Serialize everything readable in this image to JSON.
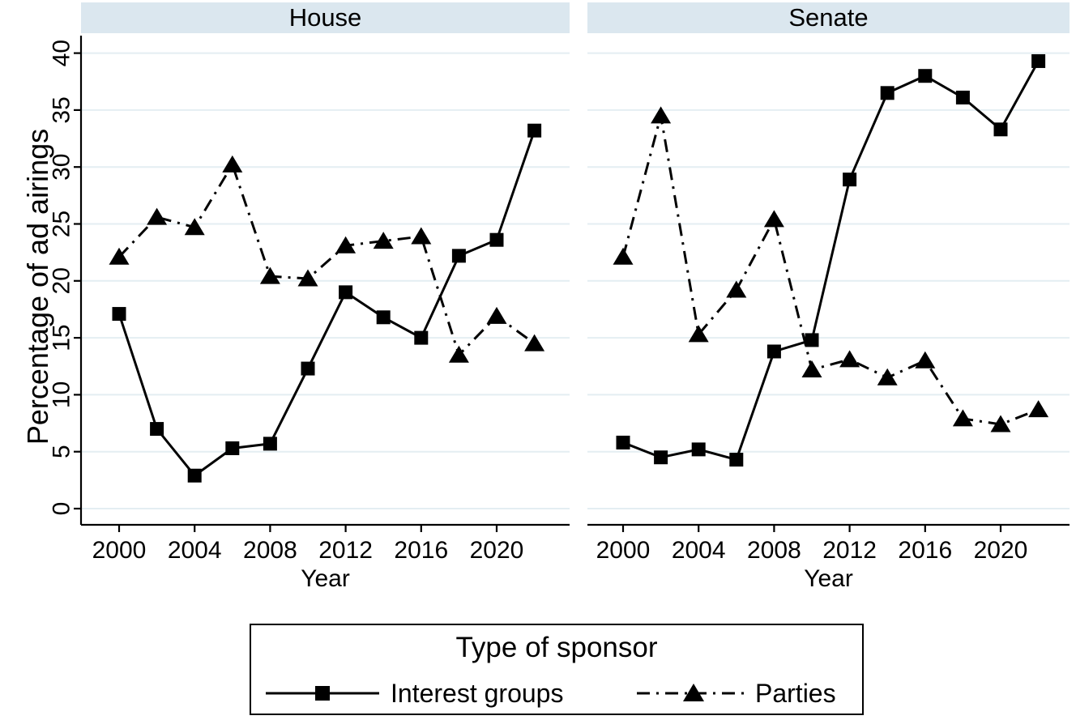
{
  "figure_title": "",
  "colors": {
    "background": "#ffffff",
    "strip_bg": "#dbe7ef",
    "grid": "#e4eef2",
    "line": "#000000",
    "text": "#000000"
  },
  "legend": {
    "title": "Type of sponsor",
    "entries": [
      {
        "label": "Interest groups",
        "marker": "square",
        "linestyle": "solid"
      },
      {
        "label": "Parties",
        "marker": "triangle",
        "linestyle": "dashdot"
      }
    ]
  },
  "chart_data": [
    {
      "type": "line",
      "panel_title": "House",
      "xlabel": "Year",
      "ylabel": "Percentage of ad airings",
      "x": [
        2000,
        2002,
        2004,
        2006,
        2008,
        2010,
        2012,
        2014,
        2016,
        2018,
        2020,
        2022
      ],
      "xticks": [
        2000,
        2004,
        2008,
        2012,
        2016,
        2020
      ],
      "yticks": [
        0,
        5,
        10,
        15,
        20,
        25,
        30,
        35,
        40
      ],
      "ylim": [
        0,
        41.5
      ],
      "grid": true,
      "legend_position": "bottom-shared",
      "series": [
        {
          "name": "Interest groups",
          "marker": "square",
          "linestyle": "solid",
          "values": [
            17.1,
            7.0,
            2.9,
            5.3,
            5.7,
            12.3,
            19.0,
            16.8,
            15.0,
            22.2,
            23.6,
            33.2
          ]
        },
        {
          "name": "Parties",
          "marker": "triangle",
          "linestyle": "dashdot",
          "values": [
            22.1,
            25.6,
            24.7,
            30.2,
            20.4,
            20.2,
            23.1,
            23.5,
            23.9,
            13.5,
            16.9,
            14.5
          ]
        }
      ]
    },
    {
      "type": "line",
      "panel_title": "Senate",
      "xlabel": "Year",
      "ylabel": "Percentage of ad airings",
      "x": [
        2000,
        2002,
        2004,
        2006,
        2008,
        2010,
        2012,
        2014,
        2016,
        2018,
        2020,
        2022
      ],
      "xticks": [
        2000,
        2004,
        2008,
        2012,
        2016,
        2020
      ],
      "yticks": [
        0,
        5,
        10,
        15,
        20,
        25,
        30,
        35,
        40
      ],
      "ylim": [
        0,
        41.5
      ],
      "grid": true,
      "legend_position": "bottom-shared",
      "series": [
        {
          "name": "Interest groups",
          "marker": "square",
          "linestyle": "solid",
          "values": [
            5.8,
            4.5,
            5.2,
            4.3,
            13.8,
            14.8,
            28.9,
            36.5,
            38.0,
            36.1,
            33.3,
            39.3
          ]
        },
        {
          "name": "Parties",
          "marker": "triangle",
          "linestyle": "dashdot",
          "values": [
            22.1,
            34.5,
            15.3,
            19.2,
            25.4,
            12.2,
            13.1,
            11.5,
            13.0,
            7.9,
            7.4,
            8.7
          ]
        }
      ]
    }
  ]
}
